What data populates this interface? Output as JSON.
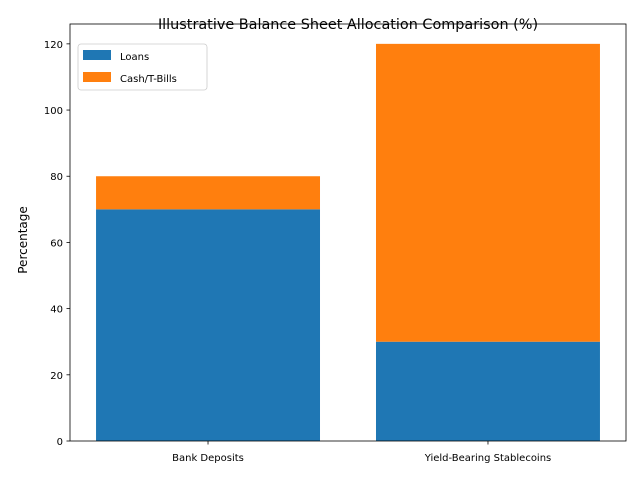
{
  "chart_data": {
    "type": "bar",
    "stacked": true,
    "title": "Illustrative Balance Sheet Allocation Comparison (%)",
    "xlabel": "",
    "ylabel": "Percentage",
    "categories": [
      "Bank Deposits",
      "Yield-Bearing Stablecoins"
    ],
    "series": [
      {
        "name": "Loans",
        "values": [
          70,
          30
        ],
        "color": "#1f77b4"
      },
      {
        "name": "Cash/T-Bills",
        "values": [
          10,
          90
        ],
        "color": "#ff7f0e"
      }
    ],
    "ylim": [
      0,
      126
    ],
    "yticks": [
      0,
      20,
      40,
      60,
      80,
      100,
      120
    ],
    "grid": false,
    "legend_position": "top-left"
  }
}
